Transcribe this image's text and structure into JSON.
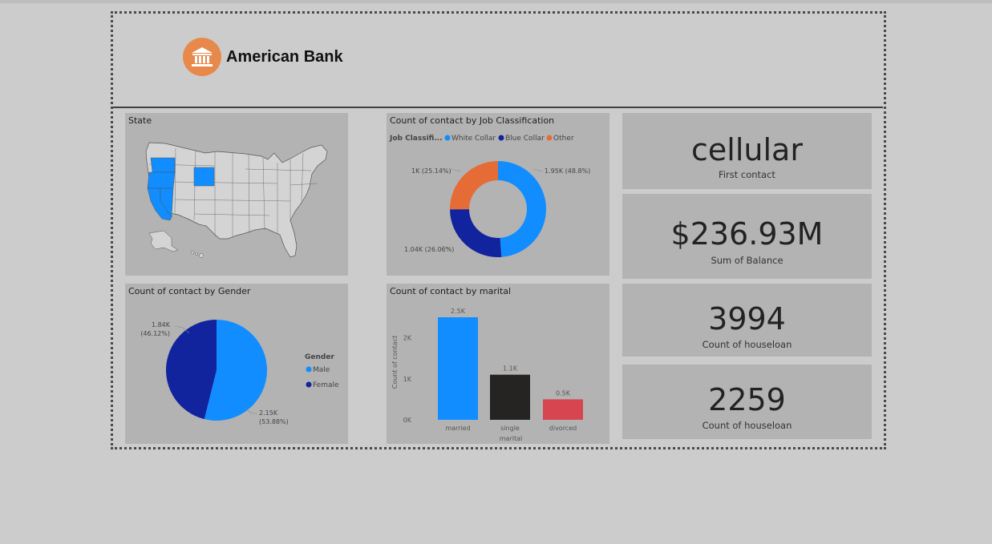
{
  "brand": {
    "name": "American Bank",
    "logo_icon": "bank-building-icon",
    "logo_color": "#e8894c"
  },
  "tiles": {
    "state": {
      "title": "State",
      "highlighted_states": [
        "Washington",
        "Oregon",
        "California",
        "Nevada",
        "Wyoming"
      ],
      "highlight_color": "#118dff",
      "base_color": "#d4d4d4"
    },
    "job": {
      "title": "Count of contact by Job Classification"
    },
    "gender": {
      "title": "Count of contact by Gender"
    },
    "marital": {
      "title": "Count of contact by marital"
    }
  },
  "kpis": [
    {
      "value": "cellular",
      "label": "First contact"
    },
    {
      "value": "$236.93M",
      "label": "Sum of Balance"
    },
    {
      "value": "3994",
      "label": "Count of houseloan"
    },
    {
      "value": "2259",
      "label": "Count of houseloan"
    }
  ],
  "chart_data": [
    {
      "type": "donut",
      "title": "Count of contact by Job Classification",
      "legend_title": "Job Classifi...",
      "legend_position": "top-left",
      "categories": [
        "White Collar",
        "Blue Collar",
        "Other"
      ],
      "values": [
        1950,
        1040,
        1000
      ],
      "percents": [
        48.8,
        26.06,
        25.14
      ],
      "data_labels": [
        "1.95K (48.8%)",
        "1.04K (26.06%)",
        "1K (25.14%)"
      ],
      "colors": [
        "#118dff",
        "#12239e",
        "#e66c37"
      ]
    },
    {
      "type": "pie",
      "title": "Count of contact by Gender",
      "legend_title": "Gender",
      "legend_position": "right",
      "categories": [
        "Male",
        "Female"
      ],
      "values": [
        2150,
        1840
      ],
      "percents": [
        53.88,
        46.12
      ],
      "data_labels": [
        {
          "count": "2.15K",
          "pct": "(53.88%)"
        },
        {
          "count": "1.84K",
          "pct": "(46.12%)"
        }
      ],
      "colors": [
        "#118dff",
        "#12239e"
      ]
    },
    {
      "type": "bar",
      "title": "Count of contact by marital",
      "xlabel": "marital",
      "ylabel": "Count of contact",
      "categories": [
        "married",
        "single",
        "divorced"
      ],
      "values": [
        2500,
        1100,
        500
      ],
      "data_labels": [
        "2.5K",
        "1.1K",
        "0.5K"
      ],
      "colors": [
        "#118dff",
        "#252423",
        "#d64550"
      ],
      "ylim": [
        0,
        2500
      ],
      "yticks": [
        {
          "value": 0,
          "label": "0K"
        },
        {
          "value": 1000,
          "label": "1K"
        },
        {
          "value": 2000,
          "label": "2K"
        }
      ],
      "grid": false
    }
  ]
}
